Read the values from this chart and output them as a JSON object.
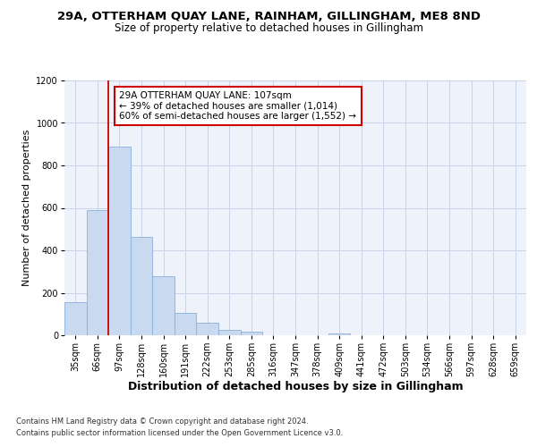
{
  "title_line1": "29A, OTTERHAM QUAY LANE, RAINHAM, GILLINGHAM, ME8 8ND",
  "title_line2": "Size of property relative to detached houses in Gillingham",
  "xlabel": "Distribution of detached houses by size in Gillingham",
  "ylabel": "Number of detached properties",
  "footnote1": "Contains HM Land Registry data © Crown copyright and database right 2024.",
  "footnote2": "Contains public sector information licensed under the Open Government Licence v3.0.",
  "annotation_line1": "29A OTTERHAM QUAY LANE: 107sqm",
  "annotation_line2": "← 39% of detached houses are smaller (1,014)",
  "annotation_line3": "60% of semi-detached houses are larger (1,552) →",
  "bar_categories": [
    "35sqm",
    "66sqm",
    "97sqm",
    "128sqm",
    "160sqm",
    "191sqm",
    "222sqm",
    "253sqm",
    "285sqm",
    "316sqm",
    "347sqm",
    "378sqm",
    "409sqm",
    "441sqm",
    "472sqm",
    "503sqm",
    "534sqm",
    "566sqm",
    "597sqm",
    "628sqm",
    "659sqm"
  ],
  "bar_values": [
    155,
    590,
    890,
    465,
    280,
    105,
    60,
    25,
    18,
    0,
    0,
    0,
    10,
    0,
    0,
    0,
    0,
    0,
    0,
    0,
    0
  ],
  "bar_color": "#c8d9f0",
  "bar_edge_color": "#8ab0d8",
  "red_line_color": "#cc0000",
  "ylim": [
    0,
    1200
  ],
  "yticks": [
    0,
    200,
    400,
    600,
    800,
    1000,
    1200
  ],
  "grid_color": "#c8d4e8",
  "bg_color": "#eef2fb",
  "title1_fontsize": 9.5,
  "title2_fontsize": 8.5,
  "ylabel_fontsize": 8,
  "xlabel_fontsize": 9,
  "tick_fontsize": 7,
  "footnote_fontsize": 6,
  "annot_fontsize": 7.5
}
